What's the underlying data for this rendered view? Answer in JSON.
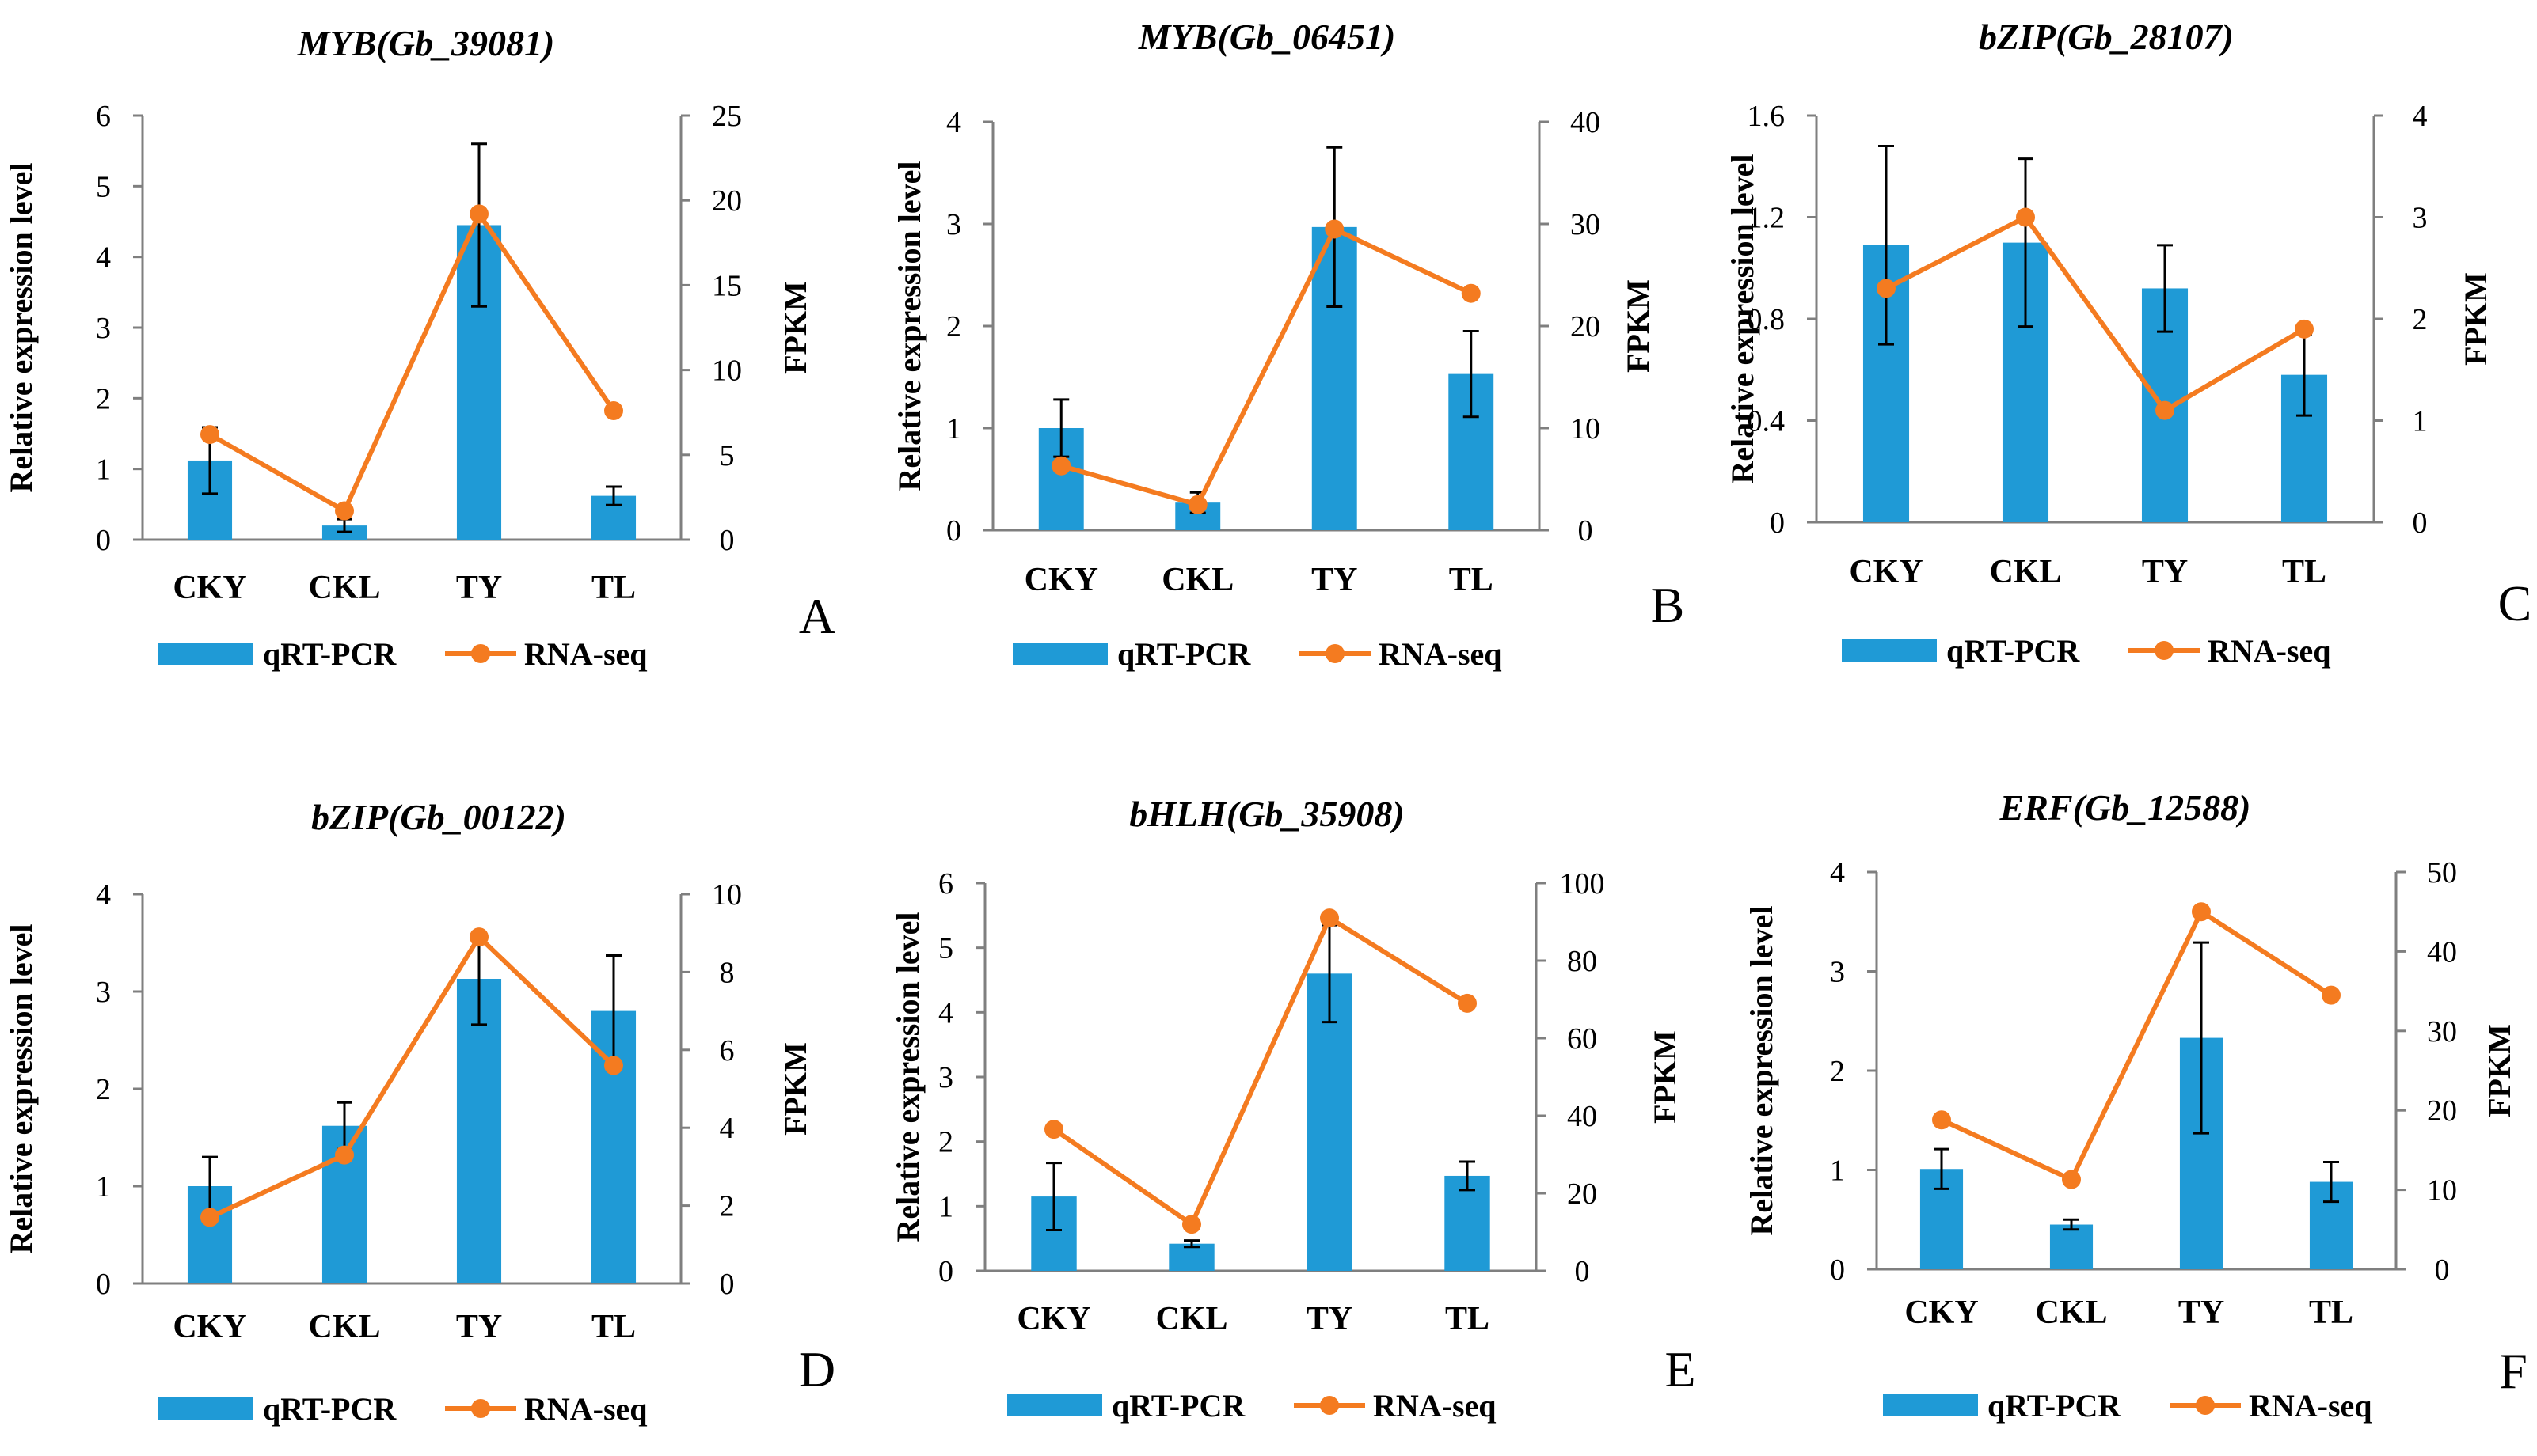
{
  "legend": {
    "bar_label": "qRT-PCR",
    "line_label": "RNA-seq"
  },
  "colors": {
    "bar": "#1f9ad6",
    "line": "#f47b20",
    "axis": "#7f7f7f",
    "error": "#000000"
  },
  "chart_data": [
    {
      "panel": "A",
      "type": "bar+line",
      "title": "MYB(Gb_39081)",
      "categories": [
        "CKY",
        "CKL",
        "TY",
        "TL"
      ],
      "ylabel": "Relative expression level",
      "y2label": "FPKM",
      "ylim": [
        0,
        6
      ],
      "yticks": [
        0,
        1,
        2,
        3,
        4,
        5,
        6
      ],
      "y2lim": [
        0,
        25
      ],
      "y2ticks": [
        0,
        5,
        10,
        15,
        20,
        25
      ],
      "series": [
        {
          "name": "qRT-PCR",
          "type": "bar",
          "axis": "left",
          "values": [
            1.12,
            0.2,
            4.45,
            0.62
          ],
          "errors": [
            0.47,
            0.09,
            1.15,
            0.13
          ]
        },
        {
          "name": "RNA-seq",
          "type": "line",
          "axis": "right",
          "values": [
            6.2,
            1.7,
            19.2,
            7.6
          ]
        }
      ]
    },
    {
      "panel": "B",
      "type": "bar+line",
      "title": "MYB(Gb_06451)",
      "categories": [
        "CKY",
        "CKL",
        "TY",
        "TL"
      ],
      "ylabel": "Relative expression level",
      "y2label": "FPKM",
      "ylim": [
        0,
        4
      ],
      "yticks": [
        0,
        1,
        2,
        3,
        4
      ],
      "y2lim": [
        0,
        40
      ],
      "y2ticks": [
        0,
        10,
        20,
        30,
        40
      ],
      "series": [
        {
          "name": "qRT-PCR",
          "type": "bar",
          "axis": "left",
          "values": [
            1.0,
            0.27,
            2.97,
            1.53
          ],
          "errors": [
            0.28,
            0.1,
            0.78,
            0.42
          ]
        },
        {
          "name": "RNA-seq",
          "type": "line",
          "axis": "right",
          "values": [
            6.3,
            2.5,
            29.5,
            23.2
          ]
        }
      ]
    },
    {
      "panel": "C",
      "type": "bar+line",
      "title": "bZIP(Gb_28107)",
      "categories": [
        "CKY",
        "CKL",
        "TY",
        "TL"
      ],
      "ylabel": "Relative expression level",
      "y2label": "FPKM",
      "ylim": [
        0,
        1.6
      ],
      "yticks": [
        0,
        0.4,
        0.8,
        1.2,
        1.6
      ],
      "y2lim": [
        0,
        4
      ],
      "y2ticks": [
        0,
        1,
        2,
        3,
        4
      ],
      "series": [
        {
          "name": "qRT-PCR",
          "type": "bar",
          "axis": "left",
          "values": [
            1.09,
            1.1,
            0.92,
            0.58
          ],
          "errors": [
            0.39,
            0.33,
            0.17,
            0.16
          ]
        },
        {
          "name": "RNA-seq",
          "type": "line",
          "axis": "right",
          "values": [
            2.3,
            3.0,
            1.1,
            1.9
          ]
        }
      ]
    },
    {
      "panel": "D",
      "type": "bar+line",
      "title": "bZIP(Gb_00122)",
      "categories": [
        "CKY",
        "CKL",
        "TY",
        "TL"
      ],
      "ylabel": "Relative expression level",
      "y2label": "FPKM",
      "ylim": [
        0,
        4
      ],
      "yticks": [
        0,
        1,
        2,
        3,
        4
      ],
      "y2lim": [
        0,
        10
      ],
      "y2ticks": [
        0,
        2,
        4,
        6,
        8,
        10
      ],
      "series": [
        {
          "name": "qRT-PCR",
          "type": "bar",
          "axis": "left",
          "values": [
            1.0,
            1.62,
            3.13,
            2.8
          ],
          "errors": [
            0.3,
            0.24,
            0.47,
            0.57
          ]
        },
        {
          "name": "RNA-seq",
          "type": "line",
          "axis": "right",
          "values": [
            1.7,
            3.3,
            8.9,
            5.6
          ]
        }
      ]
    },
    {
      "panel": "E",
      "type": "bar+line",
      "title": "bHLH(Gb_35908)",
      "categories": [
        "CKY",
        "CKL",
        "TY",
        "TL"
      ],
      "ylabel": "Relative expression level",
      "y2label": "FPKM",
      "ylim": [
        0,
        6
      ],
      "yticks": [
        0,
        1,
        2,
        3,
        4,
        5,
        6
      ],
      "y2lim": [
        0,
        100
      ],
      "y2ticks": [
        0,
        20,
        40,
        60,
        80,
        100
      ],
      "series": [
        {
          "name": "qRT-PCR",
          "type": "bar",
          "axis": "left",
          "values": [
            1.15,
            0.42,
            4.6,
            1.47
          ],
          "errors": [
            0.52,
            0.05,
            0.75,
            0.22
          ]
        },
        {
          "name": "RNA-seq",
          "type": "line",
          "axis": "right",
          "values": [
            36.5,
            12.0,
            91.0,
            69.0
          ]
        }
      ]
    },
    {
      "panel": "F",
      "type": "bar+line",
      "title": "ERF(Gb_12588)",
      "categories": [
        "CKY",
        "CKL",
        "TY",
        "TL"
      ],
      "ylabel": "Relative expression level",
      "y2label": "FPKM",
      "ylim": [
        0,
        4
      ],
      "yticks": [
        0,
        1,
        2,
        3,
        4
      ],
      "y2lim": [
        0,
        50
      ],
      "y2ticks": [
        0,
        10,
        20,
        30,
        40,
        50
      ],
      "series": [
        {
          "name": "qRT-PCR",
          "type": "bar",
          "axis": "left",
          "values": [
            1.01,
            0.45,
            2.33,
            0.88
          ],
          "errors": [
            0.2,
            0.05,
            0.96,
            0.2
          ]
        },
        {
          "name": "RNA-seq",
          "type": "line",
          "axis": "right",
          "values": [
            18.8,
            11.3,
            45.0,
            34.5
          ]
        }
      ]
    }
  ]
}
